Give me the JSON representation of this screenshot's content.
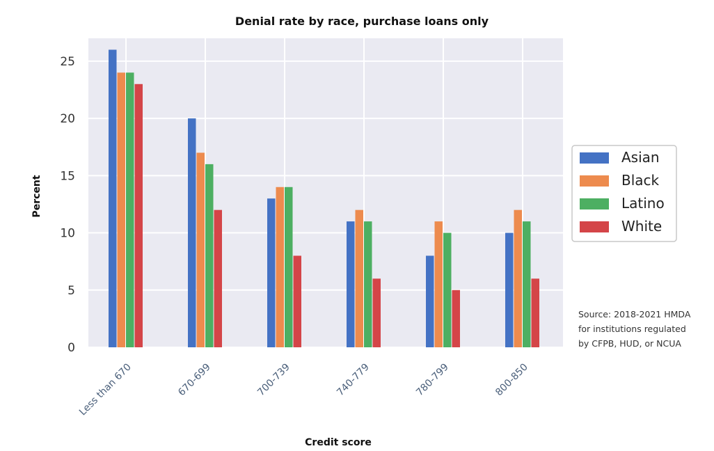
{
  "chart_data": {
    "type": "bar",
    "title": "Denial rate by race, purchase loans only",
    "xlabel": "Credit score",
    "ylabel": "Percent",
    "categories": [
      "Less than 670",
      "670-699",
      "700-739",
      "740-779",
      "780-799",
      "800-850"
    ],
    "series": [
      {
        "name": "Asian",
        "color": "#4472c4",
        "values": [
          26,
          20,
          13,
          11,
          8,
          10
        ]
      },
      {
        "name": "Black",
        "color": "#ed8b4e",
        "values": [
          24,
          17,
          14,
          12,
          11,
          12
        ]
      },
      {
        "name": "Latino",
        "color": "#4daf62",
        "values": [
          24,
          16,
          14,
          11,
          10,
          11
        ]
      },
      {
        "name": "White",
        "color": "#d44548",
        "values": [
          23,
          12,
          8,
          6,
          5,
          6
        ]
      }
    ],
    "ylim": [
      0,
      27
    ],
    "yticks": [
      0,
      5,
      10,
      15,
      20,
      25
    ],
    "grid": true,
    "legend_position": "right",
    "plot_background": "#eaeaf2",
    "source_lines": [
      "Source: 2018-2021 HMDA",
      "for institutions regulated",
      "by CFPB, HUD, or NCUA"
    ]
  }
}
